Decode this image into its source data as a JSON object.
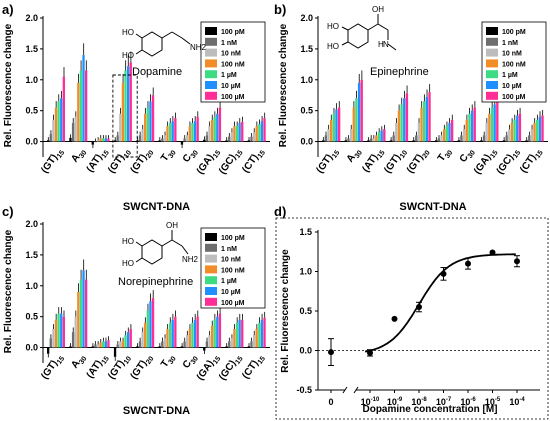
{
  "legend_colors": [
    "#000000",
    "#6e6e6e",
    "#bdbdbd",
    "#f28c28",
    "#3ddc84",
    "#1e90ff",
    "#ff2d95"
  ],
  "chart_data": [
    {
      "panel": "a)",
      "type": "bar",
      "molecule": "Dopamine",
      "structure_labels": {
        "oh1": "HO",
        "oh2": "HO",
        "amine": "NH2"
      },
      "ylabel": "Rel. Fluorescence change",
      "xlabel": "SWCNT-DNA",
      "ylim": [
        -0.25,
        2.0
      ],
      "yticks": [
        0.0,
        0.5,
        1.0,
        1.5,
        2.0
      ],
      "yticklabels": [
        "0.0",
        "0.5",
        "1.0",
        "1.5",
        "2.0"
      ],
      "grid": false,
      "legend_position": "top-right",
      "categories": [
        {
          "base": "(GT)",
          "sub": "15"
        },
        {
          "base": "A",
          "sub": "30"
        },
        {
          "base": "(AT)",
          "sub": "15"
        },
        {
          "base": "(GT)",
          "sub": "10"
        },
        {
          "base": "(GT)",
          "sub": "20"
        },
        {
          "base": "T",
          "sub": "30"
        },
        {
          "base": "C",
          "sub": "30"
        },
        {
          "base": "(GA)",
          "sub": "15"
        },
        {
          "base": "(GC)",
          "sub": "15"
        },
        {
          "base": "(CT)",
          "sub": "15"
        }
      ],
      "series": [
        {
          "name": "100 pM",
          "values": [
            0.02,
            0.06,
            -0.05,
            0.02,
            0.02,
            0.02,
            -0.05,
            0.03,
            0.02,
            0.02
          ]
        },
        {
          "name": "1 nM",
          "values": [
            0.12,
            0.3,
            0.0,
            0.1,
            0.1,
            0.05,
            0.05,
            0.1,
            0.08,
            0.08
          ]
        },
        {
          "name": "10 nM",
          "values": [
            0.35,
            0.4,
            0.02,
            0.45,
            0.2,
            0.1,
            0.1,
            0.25,
            0.15,
            0.15
          ]
        },
        {
          "name": "100 nM",
          "values": [
            0.55,
            0.95,
            0.05,
            0.95,
            0.45,
            0.25,
            0.25,
            0.35,
            0.25,
            0.25
          ]
        },
        {
          "name": "1 µM",
          "values": [
            0.65,
            1.15,
            0.05,
            1.15,
            0.55,
            0.3,
            0.3,
            0.4,
            0.25,
            0.28
          ]
        },
        {
          "name": "10 µM",
          "values": [
            0.7,
            1.4,
            0.05,
            1.22,
            0.65,
            0.33,
            0.33,
            0.45,
            0.3,
            0.33
          ]
        },
        {
          "name": "100 µM",
          "values": [
            1.05,
            1.15,
            0.05,
            1.28,
            0.75,
            0.38,
            0.4,
            0.55,
            0.32,
            0.38
          ]
        }
      ]
    },
    {
      "panel": "b)",
      "type": "bar",
      "molecule": "Epinephrine",
      "structure_labels": {
        "oh1": "HO",
        "oh2": "HO",
        "oh3": "OH",
        "amine": "N",
        "nh": "H"
      },
      "ylabel": "Rel. Fluorescence change",
      "xlabel": "SWCNT-DNA",
      "ylim": [
        -0.25,
        2.0
      ],
      "yticks": [
        0.0,
        0.5,
        1.0,
        1.5,
        2.0
      ],
      "yticklabels": [
        "0.0",
        "0.5",
        "1.0",
        "1.5",
        "2.0"
      ],
      "grid": false,
      "legend_position": "top-right",
      "categories": [
        {
          "base": "(GT)",
          "sub": "15"
        },
        {
          "base": "A",
          "sub": "30"
        },
        {
          "base": "(AT)",
          "sub": "15"
        },
        {
          "base": "(GT)",
          "sub": "10"
        },
        {
          "base": "(GT)",
          "sub": "20"
        },
        {
          "base": "T",
          "sub": "30"
        },
        {
          "base": "C",
          "sub": "30"
        },
        {
          "base": "(GA)",
          "sub": "15"
        },
        {
          "base": "(GC)",
          "sub": "15"
        },
        {
          "base": "(CT)",
          "sub": "15"
        }
      ],
      "series": [
        {
          "name": "100 pM",
          "values": [
            0.02,
            0.02,
            0.02,
            0.02,
            0.02,
            0.02,
            0.02,
            0.02,
            0.02,
            0.02
          ]
        },
        {
          "name": "1 nM",
          "values": [
            0.1,
            0.05,
            0.05,
            0.1,
            0.1,
            0.05,
            0.1,
            0.1,
            0.1,
            0.1
          ]
        },
        {
          "name": "10 nM",
          "values": [
            0.2,
            0.2,
            0.05,
            0.3,
            0.3,
            0.1,
            0.2,
            0.3,
            0.2,
            0.2
          ]
        },
        {
          "name": "100 nM",
          "values": [
            0.35,
            0.55,
            0.1,
            0.5,
            0.55,
            0.2,
            0.35,
            0.45,
            0.3,
            0.3
          ]
        },
        {
          "name": "1 µM",
          "values": [
            0.45,
            0.7,
            0.15,
            0.6,
            0.65,
            0.25,
            0.45,
            0.55,
            0.35,
            0.35
          ]
        },
        {
          "name": "10 µM",
          "values": [
            0.52,
            0.95,
            0.18,
            0.7,
            0.72,
            0.3,
            0.5,
            0.6,
            0.42,
            0.4
          ]
        },
        {
          "name": "100 µM",
          "values": [
            0.55,
            1.0,
            0.2,
            0.78,
            0.8,
            0.35,
            0.55,
            0.65,
            0.45,
            0.42
          ]
        }
      ]
    },
    {
      "panel": "c)",
      "type": "bar",
      "molecule": "Norepinephrine",
      "structure_labels": {
        "oh1": "HO",
        "oh2": "HO",
        "oh3": "OH",
        "amine": "NH2"
      },
      "ylabel": "Rel. Fluorescence change",
      "xlabel": "SWCNT-DNA",
      "ylim": [
        -0.25,
        2.0
      ],
      "yticks": [
        0.0,
        0.5,
        1.0,
        1.5,
        2.0
      ],
      "yticklabels": [
        "0.0",
        "0.5",
        "1.0",
        "1.5",
        "2.0"
      ],
      "grid": false,
      "legend_position": "top-right",
      "categories": [
        {
          "base": "(GT)",
          "sub": "15"
        },
        {
          "base": "A",
          "sub": "30"
        },
        {
          "base": "(AT)",
          "sub": "15"
        },
        {
          "base": "(GT)",
          "sub": "10"
        },
        {
          "base": "(GT)",
          "sub": "20"
        },
        {
          "base": "T",
          "sub": "30"
        },
        {
          "base": "C",
          "sub": "30"
        },
        {
          "base": "(GA)",
          "sub": "15"
        },
        {
          "base": "(GC)",
          "sub": "15"
        },
        {
          "base": "(CT)",
          "sub": "15"
        }
      ],
      "series": [
        {
          "name": "100 pM",
          "values": [
            -0.1,
            0.02,
            0.02,
            -0.15,
            0.02,
            0.02,
            0.02,
            -0.05,
            0.02,
            0.02
          ]
        },
        {
          "name": "1 nM",
          "values": [
            0.15,
            0.25,
            0.05,
            0.05,
            0.1,
            0.1,
            0.1,
            0.1,
            0.1,
            0.1
          ]
        },
        {
          "name": "10 nM",
          "values": [
            0.3,
            0.5,
            0.05,
            0.1,
            0.25,
            0.15,
            0.2,
            0.2,
            0.15,
            0.2
          ]
        },
        {
          "name": "100 nM",
          "values": [
            0.45,
            0.9,
            0.08,
            0.1,
            0.4,
            0.3,
            0.3,
            0.35,
            0.3,
            0.3
          ]
        },
        {
          "name": "1 µM",
          "values": [
            0.55,
            1.1,
            0.1,
            0.2,
            0.6,
            0.4,
            0.4,
            0.45,
            0.4,
            0.4
          ]
        },
        {
          "name": "10 µM",
          "values": [
            0.55,
            1.25,
            0.1,
            0.25,
            0.75,
            0.45,
            0.45,
            0.5,
            0.45,
            0.45
          ]
        },
        {
          "name": "100 µM",
          "values": [
            0.5,
            1.1,
            0.12,
            0.3,
            0.8,
            0.5,
            0.5,
            0.55,
            0.45,
            0.48
          ]
        }
      ]
    },
    {
      "panel": "d)",
      "type": "scatter",
      "ylabel": "Rel. Fluorescence change",
      "xlabel": "Dopamine concentration [M]",
      "x_scale": "log",
      "ylim": [
        -0.5,
        1.5
      ],
      "yticks": [
        -0.5,
        0.0,
        0.5,
        1.0,
        1.5
      ],
      "yticklabels": [
        "-0.5",
        "0.0",
        "0.5",
        "1.0",
        "1.5"
      ],
      "xticklabels": [
        {
          "base": "0",
          "exp": ""
        },
        {
          "base": "10",
          "exp": "-10"
        },
        {
          "base": "10",
          "exp": "-9"
        },
        {
          "base": "10",
          "exp": "-8"
        },
        {
          "base": "10",
          "exp": "-7"
        },
        {
          "base": "10",
          "exp": "-6"
        },
        {
          "base": "10",
          "exp": "-5"
        },
        {
          "base": "10",
          "exp": "-4"
        }
      ],
      "zero_point": {
        "x": 0,
        "y": -0.02,
        "err": 0.17
      },
      "points": [
        {
          "x": 1e-10,
          "y": -0.03,
          "err": 0.04
        },
        {
          "x": 1e-09,
          "y": 0.4,
          "err": 0.0
        },
        {
          "x": 1e-08,
          "y": 0.55,
          "err": 0.06
        },
        {
          "x": 1e-07,
          "y": 0.97,
          "err": 0.08
        },
        {
          "x": 1e-06,
          "y": 1.1,
          "err": 0.07
        },
        {
          "x": 1e-05,
          "y": 1.24,
          "err": 0.0
        },
        {
          "x": 0.0001,
          "y": 1.13,
          "err": 0.07
        }
      ],
      "fit_curve": {
        "bottom": -0.05,
        "top": 1.22,
        "log_ec50": -8.0,
        "hill": 0.7
      }
    }
  ]
}
